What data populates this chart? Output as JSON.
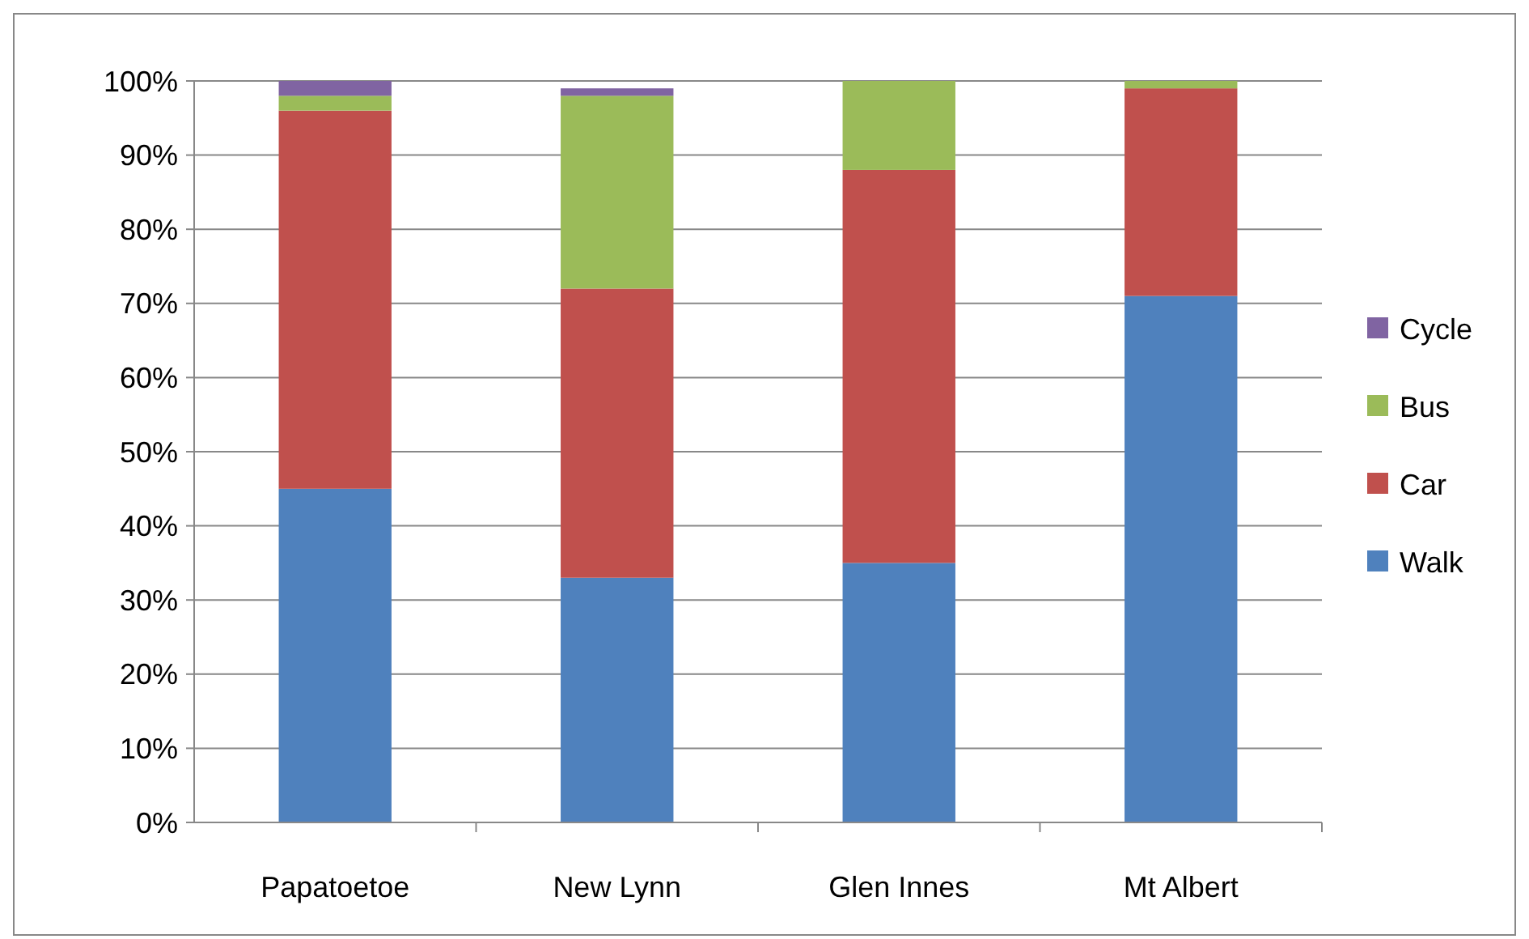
{
  "chart_data": {
    "type": "bar",
    "stacked": true,
    "categories": [
      "Papatoetoe",
      "New Lynn",
      "Glen Innes",
      "Mt Albert"
    ],
    "series": [
      {
        "name": "Walk",
        "color": "#4f81bd",
        "values": [
          45,
          33,
          35,
          71
        ]
      },
      {
        "name": "Car",
        "color": "#c0504d",
        "values": [
          51,
          39,
          53,
          28
        ]
      },
      {
        "name": "Bus",
        "color": "#9bbb59",
        "values": [
          2,
          26,
          12,
          1
        ]
      },
      {
        "name": "Cycle",
        "color": "#8064a2",
        "values": [
          2,
          1,
          0,
          0
        ]
      }
    ],
    "ylim": [
      0,
      100
    ],
    "yticks": [
      {
        "value": 0,
        "label": "0%"
      },
      {
        "value": 10,
        "label": "10%"
      },
      {
        "value": 20,
        "label": "20%"
      },
      {
        "value": 30,
        "label": "30%"
      },
      {
        "value": 40,
        "label": "40%"
      },
      {
        "value": 50,
        "label": "50%"
      },
      {
        "value": 60,
        "label": "60%"
      },
      {
        "value": 70,
        "label": "70%"
      },
      {
        "value": 80,
        "label": "80%"
      },
      {
        "value": 90,
        "label": "90%"
      },
      {
        "value": 100,
        "label": "100%"
      }
    ],
    "grid": "y",
    "legend": "right"
  }
}
